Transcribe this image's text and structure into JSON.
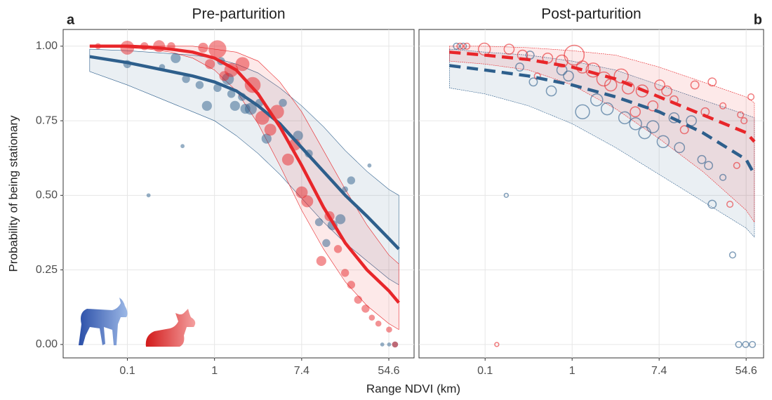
{
  "chart_data": [
    {
      "type": "line",
      "panel_label": "a",
      "title": "Pre-parturition",
      "xlabel": "Range NDVI (km)",
      "ylabel": "Probability of being stationary",
      "log_x": true,
      "grid": true,
      "y_tick_labels": true,
      "xlim": [
        0.031,
        97.5
      ],
      "ylim": [
        -0.045,
        1.056
      ],
      "xticks": [
        {
          "value": 0.1353,
          "label": "0.1"
        },
        1,
        {
          "value": 7.389,
          "label": "7.4"
        },
        {
          "value": 54.6,
          "label": "54.6"
        }
      ],
      "yticks": [
        {
          "value": 0,
          "label": "0.00"
        },
        {
          "value": 0.25,
          "label": "0.25"
        },
        {
          "value": 0.5,
          "label": "0.50"
        },
        {
          "value": 0.75,
          "label": "0.75"
        },
        {
          "value": 1,
          "label": "1.00"
        }
      ],
      "series": [
        {
          "color": "#2e5f8c",
          "line_style": "solid",
          "point_style": "filled",
          "x": [
            0.057,
            0.135,
            0.223,
            0.368,
            0.607,
            1,
            1.65,
            2.72,
            4.48,
            7.39,
            12.2,
            20.1,
            33.1,
            54.6,
            68.7
          ],
          "values": [
            0.965,
            0.945,
            0.93,
            0.915,
            0.9,
            0.88,
            0.85,
            0.8,
            0.74,
            0.66,
            0.58,
            0.5,
            0.43,
            0.355,
            0.32
          ],
          "lower": [
            0.915,
            0.87,
            0.84,
            0.81,
            0.78,
            0.75,
            0.7,
            0.64,
            0.57,
            0.49,
            0.41,
            0.34,
            0.28,
            0.22,
            0.2
          ],
          "upper": [
            0.99,
            0.985,
            0.98,
            0.975,
            0.97,
            0.96,
            0.94,
            0.91,
            0.86,
            0.8,
            0.73,
            0.65,
            0.58,
            0.52,
            0.5
          ],
          "points": {
            "x": [
              0.135,
              0.22,
              0.48,
              0.3,
              0.41,
              0.52,
              0.71,
              0.84,
              1.07,
              1.16,
              1.36,
              1.47,
              1.6,
              1.88,
              2.03,
              2.3,
              2.8,
              3.3,
              4.8,
              6.8,
              8.7,
              11,
              13,
              15,
              18,
              23,
              20,
              35,
              47,
              55,
              63
            ],
            "values": [
              0.94,
              0.5,
              0.665,
              0.93,
              0.96,
              0.89,
              0.87,
              0.8,
              0.86,
              0.95,
              0.89,
              0.84,
              0.8,
              0.83,
              0.79,
              0.79,
              0.81,
              0.69,
              0.81,
              0.7,
              0.64,
              0.41,
              0.34,
              0.4,
              0.42,
              0.55,
              0.52,
              0.6,
              0,
              0,
              0
            ],
            "sizes": [
              3,
              1,
              1,
              2,
              4,
              3,
              3,
              4,
              3,
              3,
              5,
              3,
              4,
              3,
              4,
              5,
              3,
              4,
              3,
              4,
              3,
              3,
              3,
              4,
              4,
              3,
              2,
              1,
              1,
              1,
              2
            ]
          }
        },
        {
          "color": "#e8262a",
          "line_style": "solid",
          "point_style": "filled",
          "x": [
            0.057,
            0.135,
            0.223,
            0.368,
            0.607,
            1,
            1.65,
            2.72,
            4.48,
            7.39,
            12.2,
            20.1,
            33.1,
            54.6,
            68.7
          ],
          "values": [
            1,
            1,
            0.997,
            0.99,
            0.98,
            0.96,
            0.92,
            0.84,
            0.73,
            0.6,
            0.46,
            0.34,
            0.25,
            0.18,
            0.14
          ],
          "lower": [
            1,
            0.995,
            0.99,
            0.98,
            0.96,
            0.92,
            0.85,
            0.74,
            0.6,
            0.45,
            0.32,
            0.21,
            0.13,
            0.07,
            0.05
          ],
          "upper": [
            1,
            1,
            1,
            1,
            1,
            0.99,
            0.98,
            0.95,
            0.88,
            0.78,
            0.65,
            0.52,
            0.4,
            0.3,
            0.27
          ],
          "points": {
            "x": [
              0.069,
              0.135,
              0.2,
              0.28,
              0.37,
              0.77,
              1.07,
              0.9,
              1.25,
              1.47,
              1.9,
              2.4,
              3,
              3.6,
              4.2,
              5.4,
              6.3,
              7.4,
              8.4,
              11.6,
              14,
              17,
              20,
              23,
              27,
              32,
              37,
              43,
              55,
              63
            ],
            "values": [
              1,
              0.995,
              1,
              1,
              1,
              0.995,
              0.99,
              0.94,
              0.9,
              0.92,
              0.94,
              0.87,
              0.76,
              0.72,
              0.78,
              0.62,
              0.67,
              0.51,
              0.48,
              0.28,
              0.43,
              0.32,
              0.24,
              0.2,
              0.15,
              0.12,
              0.09,
              0.07,
              0.05,
              0
            ],
            "sizes": [
              2,
              6,
              3,
              5,
              3,
              4,
              8,
              4,
              4,
              6,
              6,
              7,
              6,
              5,
              6,
              5,
              5,
              5,
              5,
              4,
              4,
              3,
              3,
              3,
              3,
              3,
              2,
              2,
              2,
              2
            ]
          }
        }
      ]
    },
    {
      "type": "line",
      "panel_label": "b",
      "title": "Post-parturition",
      "log_x": true,
      "grid": true,
      "y_tick_labels": false,
      "xlim": [
        0.0296,
        81.5
      ],
      "ylim": [
        -0.045,
        1.056
      ],
      "xticks": [
        {
          "value": 0.1353,
          "label": "0.1"
        },
        1,
        {
          "value": 7.389,
          "label": "7.4"
        },
        {
          "value": 54.6,
          "label": "54.6"
        }
      ],
      "yticks": [
        0,
        0.25,
        0.5,
        0.75,
        1
      ],
      "series": [
        {
          "color": "#2e5f8c",
          "line_style": "dashed",
          "point_style": "hollow",
          "x": [
            0.0596,
            0.135,
            0.368,
            1,
            2.72,
            7.39,
            20.1,
            54.6,
            66
          ],
          "values": [
            0.935,
            0.92,
            0.9,
            0.87,
            0.83,
            0.78,
            0.71,
            0.62,
            0.57
          ],
          "lower": [
            0.86,
            0.84,
            0.8,
            0.74,
            0.66,
            0.57,
            0.48,
            0.39,
            0.36
          ],
          "upper": [
            0.99,
            0.98,
            0.97,
            0.95,
            0.92,
            0.87,
            0.82,
            0.77,
            0.76
          ],
          "points": {
            "x": [
              0.07,
              0.082,
              0.22,
              0.3,
              0.38,
              0.41,
              0.62,
              0.79,
              0.92,
              1.27,
              1.76,
              2.24,
              3.35,
              4.3,
              5.3,
              6.4,
              8.1,
              10.4,
              11.8,
              15.5,
              19.7,
              23,
              25,
              32,
              40,
              46,
              54,
              63
            ],
            "values": [
              1,
              1,
              0.5,
              0.93,
              0.97,
              0.88,
              0.85,
              0.92,
              0.9,
              0.78,
              0.82,
              0.79,
              0.76,
              0.74,
              0.71,
              0.73,
              0.68,
              0.76,
              0.66,
              0.75,
              0.62,
              0.6,
              0.47,
              0.56,
              0.3,
              0,
              0,
              0
            ],
            "sizes": [
              2,
              2,
              1,
              3,
              3,
              3,
              4,
              4,
              4,
              6,
              5,
              5,
              5,
              5,
              5,
              5,
              5,
              4,
              4,
              4,
              3,
              3,
              3,
              2,
              2,
              2,
              2,
              2
            ]
          }
        },
        {
          "color": "#e8262a",
          "line_style": "dashed",
          "point_style": "hollow",
          "x": [
            0.0596,
            0.135,
            0.368,
            1,
            2.72,
            7.39,
            20.1,
            54.6,
            66
          ],
          "values": [
            0.98,
            0.97,
            0.955,
            0.93,
            0.89,
            0.83,
            0.77,
            0.71,
            0.68
          ],
          "lower": [
            0.95,
            0.94,
            0.92,
            0.87,
            0.79,
            0.69,
            0.58,
            0.45,
            0.41
          ],
          "upper": [
            1,
            1,
            0.995,
            0.985,
            0.97,
            0.93,
            0.88,
            0.83,
            0.81
          ],
          "points": {
            "x": [
              0.076,
              0.089,
              0.133,
              0.177,
              0.235,
              0.32,
              0.45,
              0.57,
              0.79,
              1.05,
              1.27,
              1.62,
              2.07,
              2.43,
              3.09,
              3.63,
              4.27,
              5,
              6.4,
              7.5,
              8.8,
              10.4,
              13.2,
              16.8,
              21.3,
              25,
              32,
              37.6,
              44,
              48,
              52,
              61
            ],
            "values": [
              1,
              1,
              0.99,
              0,
              0.99,
              0.97,
              0.9,
              0.96,
              0.95,
              0.97,
              0.93,
              0.92,
              0.89,
              0.87,
              0.9,
              0.86,
              0.78,
              0.85,
              0.8,
              0.87,
              0.85,
              0.82,
              0.72,
              0.87,
              0.78,
              0.88,
              0.8,
              0.47,
              0.6,
              0.77,
              0.75,
              0.83
            ],
            "sizes": [
              2,
              2,
              5,
              1,
              4,
              4,
              2,
              4,
              5,
              9,
              5,
              6,
              6,
              5,
              6,
              5,
              4,
              5,
              4,
              4,
              4,
              3,
              3,
              3,
              3,
              3,
              2,
              2,
              2,
              2,
              2,
              2
            ]
          }
        }
      ]
    }
  ]
}
